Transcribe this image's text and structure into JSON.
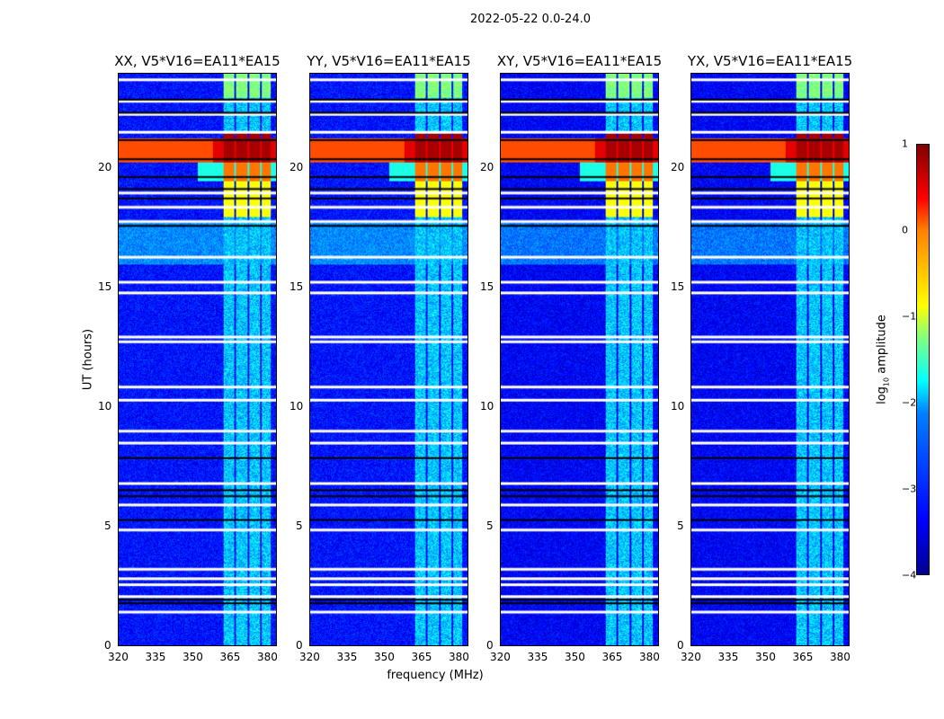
{
  "suptitle": "2022-05-22 0.0-24.0",
  "chart_data": {
    "type": "heatmap",
    "title": "2022-05-22 0.0-24.0",
    "xlabel": "frequency (MHz)",
    "ylabel": "UT (hours)",
    "xlim": [
      320,
      384
    ],
    "ylim": [
      0,
      24
    ],
    "xticks": [
      "320",
      "335",
      "350",
      "365",
      "380"
    ],
    "yticks": [
      "0",
      "5",
      "10",
      "15",
      "20"
    ],
    "panels": [
      {
        "title": "XX, V5*V16=EA11*EA15"
      },
      {
        "title": "YY, V5*V16=EA11*EA15"
      },
      {
        "title": "XY, V5*V16=EA11*EA15"
      },
      {
        "title": "YX, V5*V16=EA11*EA15"
      }
    ],
    "colorbar": {
      "label_main": "log",
      "label_sub": "10",
      "label_rest": " amplitude",
      "range": [
        -4,
        1
      ],
      "ticks": [
        "1",
        "0",
        "−1",
        "−2",
        "−3",
        "−4"
      ],
      "colormap": "jet"
    },
    "background_level": -3.3,
    "rfi_channels_mhz": [
      [
        362.5,
        367
      ],
      [
        367.7,
        372.3
      ],
      [
        373,
        377.3
      ],
      [
        378,
        381.5
      ]
    ],
    "bright_band_ut": [
      20.3,
      21.3
    ],
    "strong_rfi_ut": [
      18,
      21.5
    ],
    "flagged_rows_ut": [
      23.8,
      22.9,
      22.35,
      21.6,
      19.05,
      18.45,
      17.85,
      16.35,
      15.3,
      14.85,
      13.0,
      12.8,
      10.9,
      10.35,
      9.05,
      8.55,
      6.85,
      5.95,
      4.9,
      3.25,
      2.85,
      2.6,
      2.1,
      1.45
    ],
    "dropout_rows_ut": [
      22.95,
      22.4,
      21.25,
      20.45,
      19.7,
      19.2,
      18.8,
      17.65,
      7.9,
      6.55,
      6.3,
      5.3,
      1.95,
      1.8
    ]
  }
}
